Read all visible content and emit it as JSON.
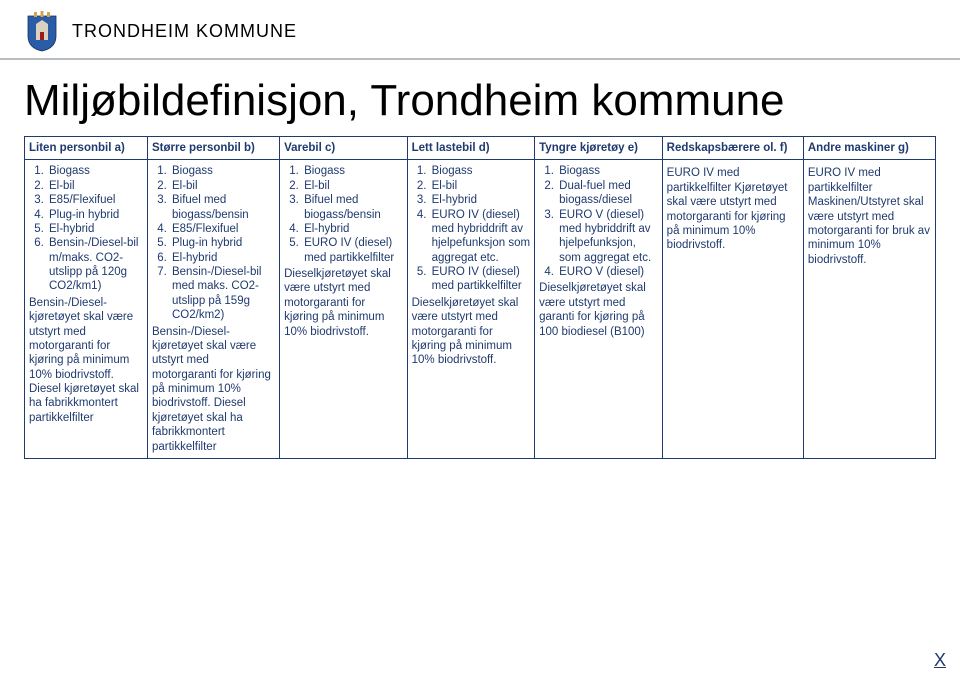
{
  "header": {
    "org": "TRONDHEIM KOMMUNE",
    "logo_colors": {
      "shield": "#2a5ca8",
      "crown": "#d4a64a",
      "accent": "#9c1b1b"
    }
  },
  "title": "Miljøbildefinisjon, Trondheim kommune",
  "colors": {
    "border": "#1f3a6e",
    "text": "#1f3a6e",
    "header_rule": "#b8bdc2",
    "background": "#ffffff"
  },
  "table": {
    "columns": [
      {
        "key": "a",
        "label": "Liten personbil a)"
      },
      {
        "key": "b",
        "label": "Større personbil b)"
      },
      {
        "key": "c",
        "label": "Varebil c)"
      },
      {
        "key": "d",
        "label": "Lett lastebil d)"
      },
      {
        "key": "e",
        "label": "Tyngre kjøretøy e)"
      },
      {
        "key": "f",
        "label": "Redskapsbærere ol. f)"
      },
      {
        "key": "g",
        "label": "Andre maskiner g)"
      }
    ],
    "cells": {
      "a": {
        "list": [
          "Biogass",
          "El-bil",
          "E85/Flexifuel",
          "Plug-in hybrid",
          "El-hybrid",
          "Bensin-/Diesel-bil m/maks. CO2-utslipp på 120g CO2/km1)"
        ],
        "para": "Bensin-/Diesel-kjøretøyet skal være utstyrt med motorgaranti for kjøring på minimum 10% biodrivstoff. Diesel kjøretøyet skal ha fabrikkmontert partikkelfilter"
      },
      "b": {
        "list": [
          "Biogass",
          "El-bil",
          "Bifuel med biogass/bensin",
          "E85/Flexifuel",
          "Plug-in hybrid",
          "El-hybrid",
          "Bensin-/Diesel-bil med maks. CO2-utslipp på 159g CO2/km2)"
        ],
        "para": "Bensin-/Diesel-kjøretøyet skal være utstyrt med motorgaranti for kjøring på minimum 10% biodrivstoff. Diesel kjøretøyet skal ha fabrikkmontert partikkelfilter"
      },
      "c": {
        "list": [
          "Biogass",
          "El-bil",
          "Bifuel med biogass/bensin",
          "El-hybrid",
          "EURO IV (diesel) med partikkelfilter"
        ],
        "para": "Dieselkjøretøyet skal være utstyrt med motorgaranti for kjøring på minimum 10% biodrivstoff."
      },
      "d": {
        "list": [
          "Biogass",
          "El-bil",
          "El-hybrid",
          "EURO IV (diesel) med hybriddrift av hjelpefunksjon som aggregat etc.",
          "EURO IV (diesel) med partikkelfilter"
        ],
        "para": "Dieselkjøretøyet skal være utstyrt med motorgaranti for kjøring på minimum 10% biodrivstoff."
      },
      "e": {
        "list": [
          "Biogass",
          "Dual-fuel med biogass/diesel",
          "EURO V (diesel) med hybriddrift av hjelpefunksjon, som aggregat etc.",
          "EURO V (diesel)"
        ],
        "para": "Dieselkjøretøyet skal være utstyrt med garanti for kjøring på 100 biodiesel (B100)"
      },
      "f": {
        "list": [],
        "para": "EURO IV med partikkelfilter Kjøretøyet skal være utstyrt med motorgaranti for kjøring på minimum 10% biodrivstoff."
      },
      "g": {
        "list": [],
        "para": "EURO IV med partikkelfilter Maskinen/Utstyret skal være utstyrt med motorgaranti for bruk av minimum 10% biodrivstoff."
      }
    }
  },
  "footer": {
    "close": "X"
  }
}
